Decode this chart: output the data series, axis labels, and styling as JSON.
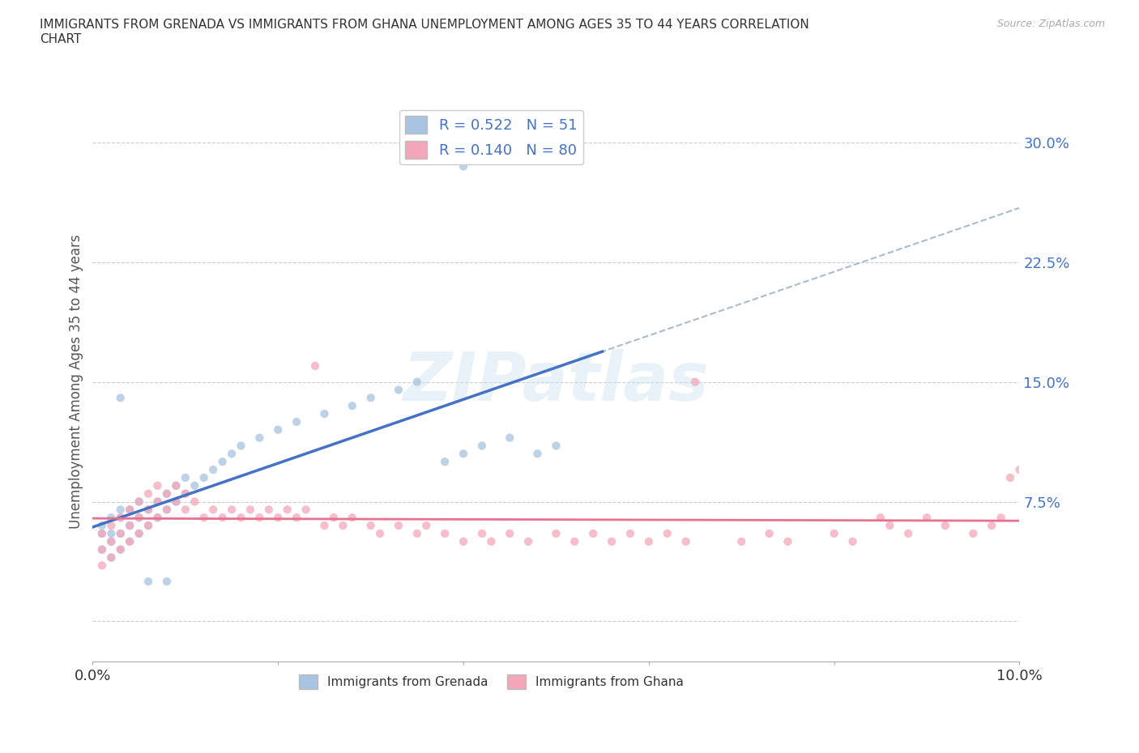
{
  "title": "IMMIGRANTS FROM GRENADA VS IMMIGRANTS FROM GHANA UNEMPLOYMENT AMONG AGES 35 TO 44 YEARS CORRELATION\nCHART",
  "source_text": "Source: ZipAtlas.com",
  "ylabel": "Unemployment Among Ages 35 to 44 years",
  "xlim": [
    0.0,
    0.1
  ],
  "ylim": [
    -0.025,
    0.325
  ],
  "yticks": [
    0.0,
    0.075,
    0.15,
    0.225,
    0.3
  ],
  "yticklabels": [
    "",
    "7.5%",
    "15.0%",
    "22.5%",
    "30.0%"
  ],
  "xtick_positions": [
    0.0,
    0.02,
    0.04,
    0.06,
    0.08,
    0.1
  ],
  "grenada_color": "#a8c4e0",
  "ghana_color": "#f4a7b9",
  "grenada_R": 0.522,
  "grenada_N": 51,
  "ghana_R": 0.14,
  "ghana_N": 80,
  "watermark": "ZIPatlas",
  "legend_label1": "Immigrants from Grenada",
  "legend_label2": "Immigrants from Ghana",
  "background_color": "#ffffff",
  "grid_color": "#cccccc",
  "trend_color_grenada": "#4472c4",
  "trend_color_ghana": "#e87090",
  "scatter_alpha": 0.75,
  "scatter_size": 55,
  "tick_label_color": "#4472c4",
  "grenada_scatter": [
    [
      0.001,
      0.045
    ],
    [
      0.001,
      0.055
    ],
    [
      0.001,
      0.06
    ],
    [
      0.002,
      0.04
    ],
    [
      0.002,
      0.05
    ],
    [
      0.002,
      0.055
    ],
    [
      0.002,
      0.065
    ],
    [
      0.003,
      0.045
    ],
    [
      0.003,
      0.055
    ],
    [
      0.003,
      0.065
    ],
    [
      0.003,
      0.07
    ],
    [
      0.004,
      0.05
    ],
    [
      0.004,
      0.06
    ],
    [
      0.004,
      0.07
    ],
    [
      0.005,
      0.055
    ],
    [
      0.005,
      0.065
    ],
    [
      0.005,
      0.075
    ],
    [
      0.006,
      0.06
    ],
    [
      0.006,
      0.07
    ],
    [
      0.007,
      0.065
    ],
    [
      0.007,
      0.075
    ],
    [
      0.008,
      0.07
    ],
    [
      0.008,
      0.08
    ],
    [
      0.009,
      0.075
    ],
    [
      0.009,
      0.085
    ],
    [
      0.01,
      0.08
    ],
    [
      0.01,
      0.09
    ],
    [
      0.011,
      0.085
    ],
    [
      0.012,
      0.09
    ],
    [
      0.013,
      0.095
    ],
    [
      0.014,
      0.1
    ],
    [
      0.015,
      0.105
    ],
    [
      0.016,
      0.11
    ],
    [
      0.018,
      0.115
    ],
    [
      0.02,
      0.12
    ],
    [
      0.022,
      0.125
    ],
    [
      0.025,
      0.13
    ],
    [
      0.028,
      0.135
    ],
    [
      0.03,
      0.14
    ],
    [
      0.033,
      0.145
    ],
    [
      0.035,
      0.15
    ],
    [
      0.038,
      0.1
    ],
    [
      0.04,
      0.105
    ],
    [
      0.042,
      0.11
    ],
    [
      0.045,
      0.115
    ],
    [
      0.048,
      0.105
    ],
    [
      0.05,
      0.11
    ],
    [
      0.003,
      0.14
    ],
    [
      0.006,
      0.025
    ],
    [
      0.008,
      0.025
    ],
    [
      0.04,
      0.285
    ]
  ],
  "ghana_scatter": [
    [
      0.001,
      0.045
    ],
    [
      0.001,
      0.035
    ],
    [
      0.001,
      0.055
    ],
    [
      0.002,
      0.04
    ],
    [
      0.002,
      0.05
    ],
    [
      0.002,
      0.06
    ],
    [
      0.003,
      0.045
    ],
    [
      0.003,
      0.055
    ],
    [
      0.003,
      0.065
    ],
    [
      0.004,
      0.05
    ],
    [
      0.004,
      0.06
    ],
    [
      0.004,
      0.07
    ],
    [
      0.005,
      0.055
    ],
    [
      0.005,
      0.065
    ],
    [
      0.005,
      0.075
    ],
    [
      0.006,
      0.06
    ],
    [
      0.006,
      0.07
    ],
    [
      0.006,
      0.08
    ],
    [
      0.007,
      0.065
    ],
    [
      0.007,
      0.075
    ],
    [
      0.007,
      0.085
    ],
    [
      0.008,
      0.07
    ],
    [
      0.008,
      0.08
    ],
    [
      0.009,
      0.075
    ],
    [
      0.009,
      0.085
    ],
    [
      0.01,
      0.08
    ],
    [
      0.01,
      0.07
    ],
    [
      0.011,
      0.075
    ],
    [
      0.012,
      0.065
    ],
    [
      0.013,
      0.07
    ],
    [
      0.014,
      0.065
    ],
    [
      0.015,
      0.07
    ],
    [
      0.016,
      0.065
    ],
    [
      0.017,
      0.07
    ],
    [
      0.018,
      0.065
    ],
    [
      0.019,
      0.07
    ],
    [
      0.02,
      0.065
    ],
    [
      0.021,
      0.07
    ],
    [
      0.022,
      0.065
    ],
    [
      0.023,
      0.07
    ],
    [
      0.024,
      0.16
    ],
    [
      0.025,
      0.06
    ],
    [
      0.026,
      0.065
    ],
    [
      0.027,
      0.06
    ],
    [
      0.028,
      0.065
    ],
    [
      0.03,
      0.06
    ],
    [
      0.031,
      0.055
    ],
    [
      0.033,
      0.06
    ],
    [
      0.035,
      0.055
    ],
    [
      0.036,
      0.06
    ],
    [
      0.038,
      0.055
    ],
    [
      0.04,
      0.05
    ],
    [
      0.042,
      0.055
    ],
    [
      0.043,
      0.05
    ],
    [
      0.045,
      0.055
    ],
    [
      0.047,
      0.05
    ],
    [
      0.05,
      0.055
    ],
    [
      0.052,
      0.05
    ],
    [
      0.054,
      0.055
    ],
    [
      0.056,
      0.05
    ],
    [
      0.058,
      0.055
    ],
    [
      0.06,
      0.05
    ],
    [
      0.062,
      0.055
    ],
    [
      0.064,
      0.05
    ],
    [
      0.065,
      0.15
    ],
    [
      0.07,
      0.05
    ],
    [
      0.073,
      0.055
    ],
    [
      0.075,
      0.05
    ],
    [
      0.08,
      0.055
    ],
    [
      0.082,
      0.05
    ],
    [
      0.085,
      0.065
    ],
    [
      0.086,
      0.06
    ],
    [
      0.088,
      0.055
    ],
    [
      0.09,
      0.065
    ],
    [
      0.092,
      0.06
    ],
    [
      0.095,
      0.055
    ],
    [
      0.097,
      0.06
    ],
    [
      0.098,
      0.065
    ],
    [
      0.099,
      0.09
    ],
    [
      0.1,
      0.095
    ]
  ]
}
